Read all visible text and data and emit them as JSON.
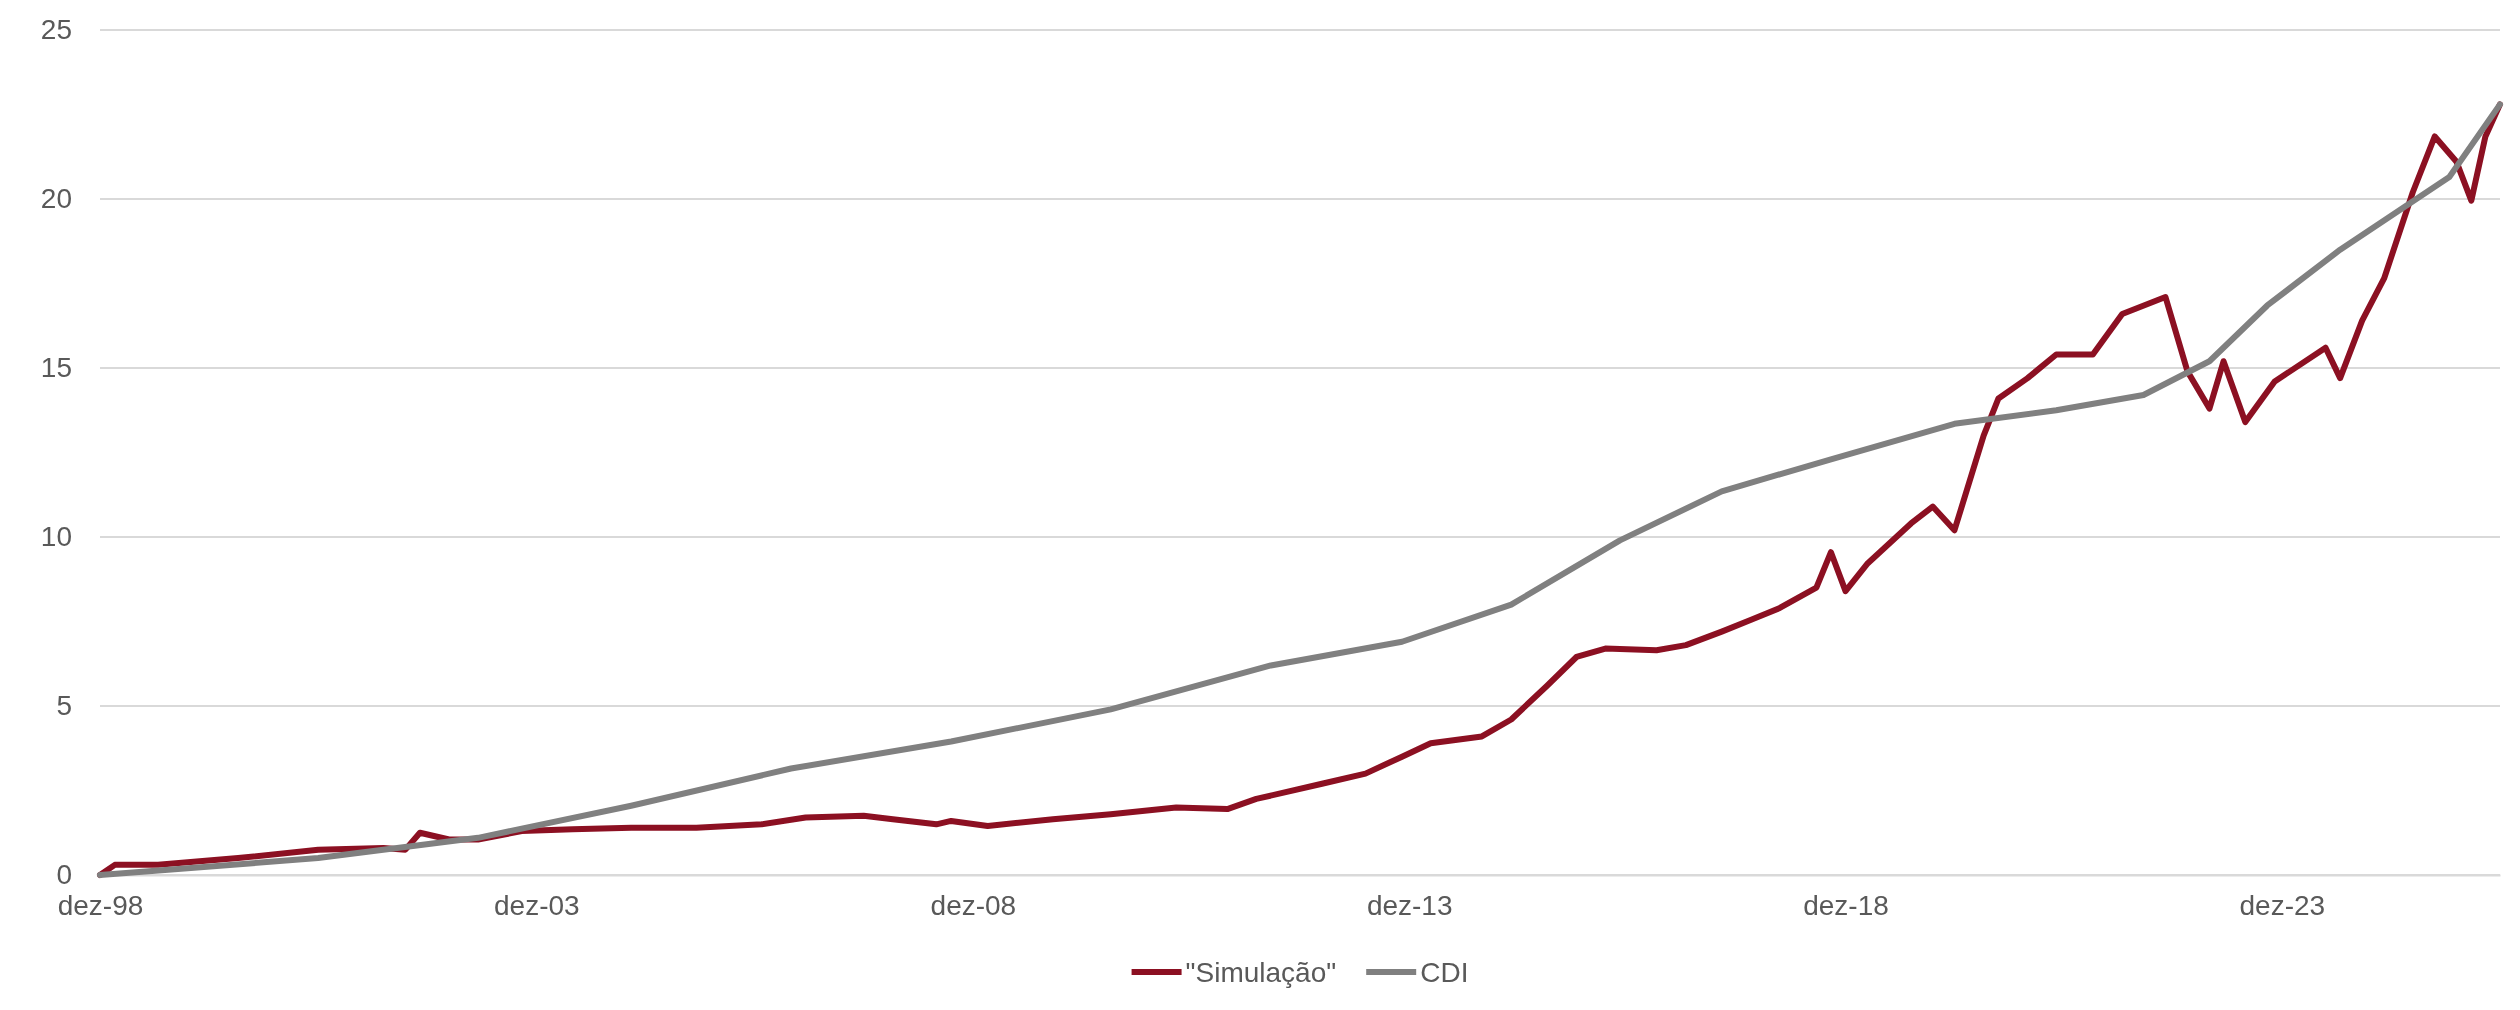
{
  "chart_data": {
    "type": "line",
    "xlim": [
      "1998-12",
      "2026-06"
    ],
    "xticks": [
      {
        "value": "1998-12",
        "label": "dez-98"
      },
      {
        "value": "2003-12",
        "label": "dez-03"
      },
      {
        "value": "2008-12",
        "label": "dez-08"
      },
      {
        "value": "2013-12",
        "label": "dez-13"
      },
      {
        "value": "2018-12",
        "label": "dez-18"
      },
      {
        "value": "2023-12",
        "label": "dez-23"
      }
    ],
    "ylim": [
      0,
      25
    ],
    "yticks": [
      0,
      5,
      10,
      15,
      20,
      25
    ],
    "grid": "y",
    "legend": "bottom",
    "marker": "none",
    "line_style": "solid",
    "series": [
      {
        "name": "\"Simulação\"",
        "color": "#8c1022",
        "x": [
          "1998-12",
          "1999-02",
          "1999-08",
          "2000-07",
          "2001-06",
          "2002-03",
          "2002-06",
          "2002-08",
          "2002-12",
          "2003-04",
          "2003-10",
          "2004-05",
          "2005-01",
          "2005-10",
          "2006-07",
          "2007-01",
          "2007-09",
          "2008-01",
          "2008-07",
          "2008-09",
          "2009-02",
          "2009-11",
          "2010-07",
          "2011-04",
          "2011-11",
          "2012-03",
          "2012-12",
          "2013-06",
          "2013-11",
          "2014-03",
          "2014-10",
          "2015-02",
          "2015-07",
          "2015-11",
          "2016-03",
          "2016-10",
          "2017-02",
          "2017-07",
          "2017-11",
          "2018-03",
          "2018-08",
          "2018-10",
          "2018-12",
          "2019-03",
          "2019-09",
          "2019-12",
          "2020-03",
          "2020-05",
          "2020-07",
          "2020-09",
          "2021-01",
          "2021-05",
          "2021-10",
          "2022-02",
          "2022-08",
          "2022-11",
          "2023-02",
          "2023-04",
          "2023-07",
          "2023-11",
          "2024-06",
          "2024-08",
          "2024-11",
          "2025-02",
          "2025-06",
          "2025-09",
          "2025-12",
          "2026-02",
          "2026-04",
          "2026-06"
        ],
        "values": [
          0,
          0.3,
          0.3,
          0.5,
          0.75,
          0.8,
          0.75,
          1.25,
          1.05,
          1.05,
          1.3,
          1.35,
          1.4,
          1.4,
          1.5,
          1.7,
          1.75,
          1.65,
          1.5,
          1.6,
          1.45,
          1.65,
          1.8,
          2.0,
          1.95,
          2.25,
          2.7,
          3.0,
          3.5,
          3.9,
          4.1,
          4.6,
          5.6,
          6.45,
          6.7,
          6.65,
          6.8,
          7.2,
          7.55,
          7.9,
          8.5,
          9.55,
          8.4,
          9.2,
          10.4,
          10.9,
          10.2,
          11.6,
          13.0,
          14.1,
          14.7,
          15.4,
          15.4,
          16.6,
          17.1,
          14.9,
          13.8,
          15.2,
          13.4,
          14.6,
          15.6,
          14.7,
          16.4,
          17.65,
          20.2,
          21.85,
          21.1,
          19.95,
          21.85,
          22.8
        ]
      },
      {
        "name": "CDI",
        "color": "#808080",
        "x": [
          "1998-12",
          "2001-06",
          "2003-04",
          "2005-01",
          "2006-11",
          "2008-09",
          "2010-07",
          "2012-05",
          "2013-11",
          "2015-02",
          "2016-05",
          "2017-07",
          "2018-10",
          "2020-03",
          "2021-05",
          "2022-05",
          "2023-02",
          "2023-10",
          "2024-08",
          "2025-11",
          "2026-06"
        ],
        "values": [
          0,
          0.5,
          1.1,
          2.05,
          3.15,
          3.95,
          4.9,
          6.2,
          6.9,
          8.0,
          9.9,
          11.35,
          12.3,
          13.35,
          13.75,
          14.2,
          15.2,
          16.85,
          18.5,
          20.65,
          22.8
        ]
      }
    ]
  }
}
